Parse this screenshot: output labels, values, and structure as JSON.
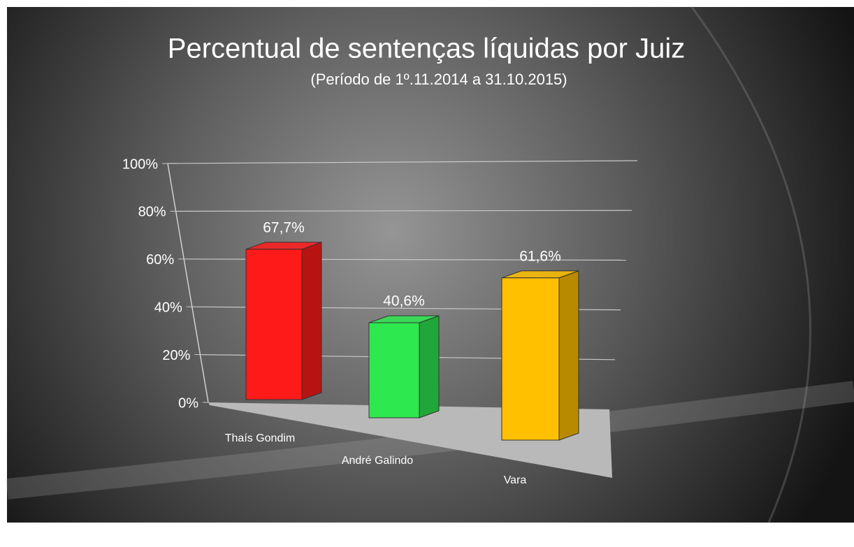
{
  "chart_data": {
    "type": "bar3d",
    "title": "Percentual de sentenças líquidas por Juiz",
    "subtitle": "(Período de 1º.11.2014  a  31.10.2015)",
    "categories": [
      "Thaís Gondim",
      "André Galindo",
      "Vara"
    ],
    "values": [
      67.7,
      40.6,
      61.6
    ],
    "value_labels": [
      "67,7%",
      "40,6%",
      "61,6%"
    ],
    "colors": [
      "#ff1a1a",
      "#2ee84f",
      "#ffc000"
    ],
    "ylim": [
      0,
      100
    ],
    "yticks": [
      {
        "value": 0,
        "label": "0%"
      },
      {
        "value": 20,
        "label": "20%"
      },
      {
        "value": 40,
        "label": "40%"
      },
      {
        "value": 60,
        "label": "60%"
      },
      {
        "value": 80,
        "label": "80%"
      },
      {
        "value": 100,
        "label": "100%"
      }
    ],
    "grid": true
  }
}
